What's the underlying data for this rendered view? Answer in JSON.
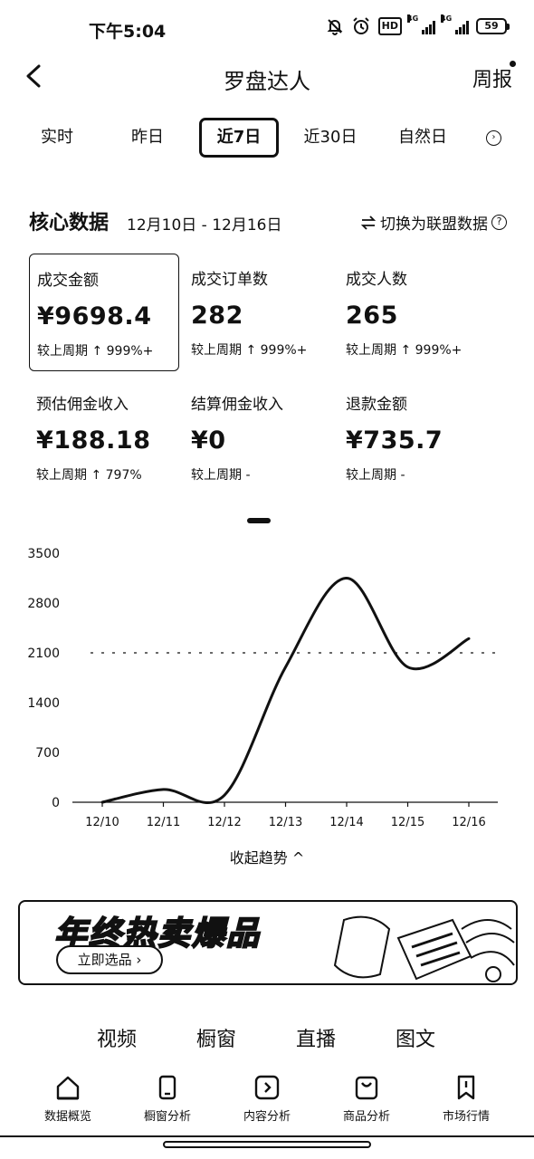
{
  "status_bar": {
    "time": "下午5:04",
    "hd": "HD",
    "signal_1": "4G",
    "signal_2": "4G",
    "battery": "59",
    "icons": [
      "mute-bell-icon",
      "alarm-icon",
      "hd-icon",
      "signal-icon",
      "signal-icon",
      "battery-icon"
    ]
  },
  "nav": {
    "title": "罗盘达人",
    "right_label": "周报",
    "back_icon": "chevron-left-icon"
  },
  "date_tabs": {
    "items": [
      "实时",
      "昨日",
      "近7日",
      "近30日",
      "自然日"
    ],
    "active": "近7日",
    "more_icon": "arrow-right-circle-icon"
  },
  "core": {
    "title": "核心数据",
    "range": "12月10日 - 12月16日",
    "switch_label": "切换为联盟数据",
    "switch_icon": "swap-icon",
    "help_icon": "question-circle-icon"
  },
  "metrics": [
    {
      "label": "成交金额",
      "value": "¥9698.4",
      "change": "较上周期 ↑ 999%+"
    },
    {
      "label": "成交订单数",
      "value": "282",
      "change": "较上周期 ↑ 999%+"
    },
    {
      "label": "成交人数",
      "value": "265",
      "change": "较上周期 ↑ 999%+"
    },
    {
      "label": "预估佣金收入",
      "value": "¥188.18",
      "change": "较上周期 ↑ 797%"
    },
    {
      "label": "结算佣金收入",
      "value": "¥0",
      "change": "较上周期 -"
    },
    {
      "label": "退款金额",
      "value": "¥735.7",
      "change": "较上周期 -"
    }
  ],
  "chart_data": {
    "type": "line",
    "title": "",
    "xlabel": "",
    "ylabel": "",
    "categories": [
      "12/10",
      "12/11",
      "12/12",
      "12/13",
      "12/14",
      "12/15",
      "12/16"
    ],
    "series": [
      {
        "values": [
          0,
          180,
          100,
          1900,
          3150,
          1900,
          2300
        ]
      }
    ],
    "y_ticks": [
      0,
      700,
      1400,
      2100,
      2800,
      3500
    ],
    "ylim": [
      0,
      3500
    ],
    "reference_line": 2100,
    "grid": false
  },
  "collapse_label": "收起趋势",
  "banner": {
    "title": "年终热卖爆品",
    "button": "立即选品 ›"
  },
  "content_tabs": [
    "视频",
    "橱窗",
    "直播",
    "图文"
  ],
  "bottom_nav": [
    {
      "label": "数据概览",
      "icon": "home-icon"
    },
    {
      "label": "橱窗分析",
      "icon": "phone-icon"
    },
    {
      "label": "内容分析",
      "icon": "play-square-icon"
    },
    {
      "label": "商品分析",
      "icon": "shopping-bag-icon"
    },
    {
      "label": "市场行情",
      "icon": "bookmark-icon"
    }
  ]
}
